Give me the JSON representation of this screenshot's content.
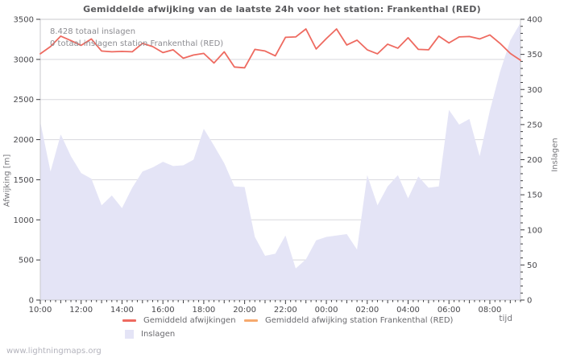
{
  "title": "Gemiddelde afwijking van de laatste 24h voor het station: Frankenthal (RED)",
  "annotation": {
    "line1": "8.428 totaal inslagen",
    "line2": "0 totaal inslagen station Frankenthal (RED)"
  },
  "axes": {
    "left_title": "Afwijking  [m]",
    "right_title": "Inslagen",
    "x_title": "tijd"
  },
  "legend": [
    {
      "label": "Gemiddeld afwijkingen",
      "color": "#ee6a60",
      "type": "line"
    },
    {
      "label": "Gemiddeld afwijking station Frankenthal (RED)",
      "color": "#f6a96e",
      "type": "line"
    },
    {
      "label": "Inslagen",
      "color": "#e4e4f6",
      "type": "area"
    }
  ],
  "footer": "www.lightningmaps.org",
  "colors": {
    "grid": "#d8d8de",
    "border": "#c9c9ce",
    "tick": "#3c3c40",
    "tick_label": "#48484c",
    "avg_line": "#ee6a60",
    "station_line": "#f6a96e",
    "area_fill": "#e4e4f6"
  },
  "chart_data": {
    "type": "line+area",
    "x": [
      "10:00",
      "10:30",
      "11:00",
      "11:30",
      "12:00",
      "12:30",
      "13:00",
      "13:30",
      "14:00",
      "14:30",
      "15:00",
      "15:30",
      "16:00",
      "16:30",
      "17:00",
      "17:30",
      "18:00",
      "18:30",
      "19:00",
      "19:30",
      "20:00",
      "20:30",
      "21:00",
      "21:30",
      "22:00",
      "22:30",
      "23:00",
      "23:30",
      "00:00",
      "00:30",
      "01:00",
      "01:30",
      "02:00",
      "02:30",
      "03:00",
      "03:30",
      "04:00",
      "04:30",
      "05:00",
      "05:30",
      "06:00",
      "06:30",
      "07:00",
      "07:30",
      "08:00",
      "08:30",
      "09:00",
      "09:30"
    ],
    "x_major_labels": [
      "10:00",
      "12:00",
      "14:00",
      "16:00",
      "18:00",
      "20:00",
      "22:00",
      "00:00",
      "02:00",
      "04:00",
      "06:00",
      "08:00"
    ],
    "x_total_minutes": 1410,
    "x_minor_minutes": 15,
    "x_hour_minutes": 60,
    "x_major_minutes": 120,
    "left_axis": {
      "label": "Afwijking [m]",
      "min": 0,
      "max": 3500,
      "step": 500
    },
    "right_axis": {
      "label": "Inslagen",
      "min": 0,
      "max": 400,
      "step": 50,
      "minor_step": 10
    },
    "grid": true,
    "legend_position": "bottom",
    "series": [
      {
        "name": "Gemiddeld afwijkingen",
        "axis": "left",
        "type": "line",
        "color": "#ee6a60",
        "values": [
          3070,
          3160,
          3290,
          3235,
          3175,
          3255,
          3105,
          3095,
          3100,
          3095,
          3200,
          3160,
          3085,
          3120,
          3015,
          3055,
          3075,
          2955,
          3095,
          2905,
          2895,
          3125,
          3105,
          3045,
          3275,
          3280,
          3380,
          3130,
          3260,
          3380,
          3180,
          3240,
          3120,
          3070,
          3190,
          3140,
          3270,
          3125,
          3120,
          3290,
          3205,
          3280,
          3285,
          3255,
          3305,
          3200,
          3075,
          2990
        ]
      },
      {
        "name": "Gemiddeld afwijking station Frankenthal (RED)",
        "axis": "left",
        "type": "line",
        "color": "#f6a96e",
        "values": []
      },
      {
        "name": "Inslagen",
        "axis": "right",
        "type": "area",
        "color": "#e4e4f6",
        "values": [
          254,
          183,
          236,
          205,
          181,
          173,
          135,
          149,
          131,
          160,
          183,
          189,
          197,
          191,
          192,
          200,
          244,
          220,
          195,
          162,
          161,
          90,
          63,
          66,
          92,
          45,
          58,
          85,
          90,
          92,
          94,
          72,
          178,
          135,
          162,
          178,
          145,
          176,
          160,
          162,
          271,
          250,
          258,
          205,
          270,
          325,
          370,
          395
        ]
      }
    ]
  }
}
